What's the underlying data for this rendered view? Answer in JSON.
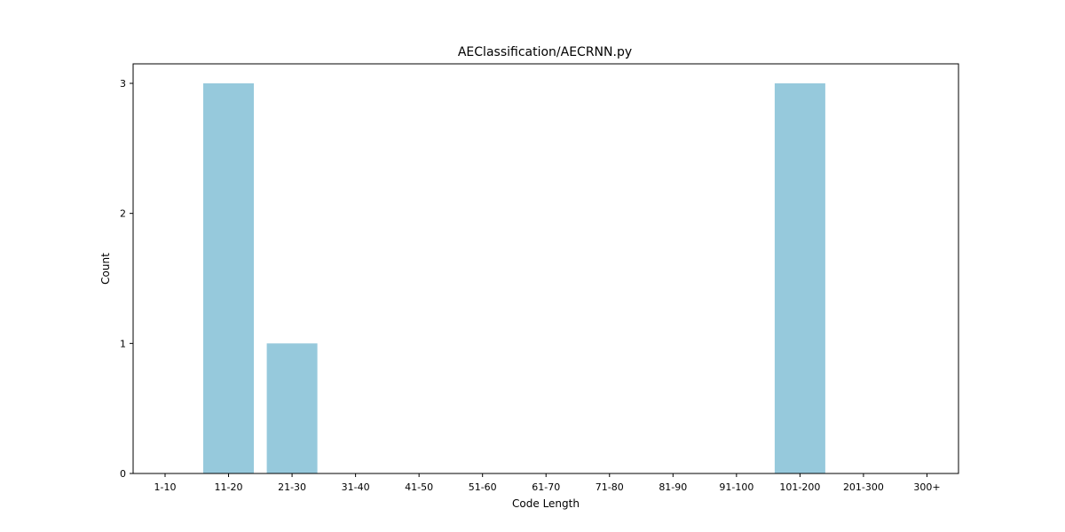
{
  "chart_data": {
    "type": "bar",
    "title": "AEClassification/AECRNN.py",
    "xlabel": "Code Length",
    "ylabel": "Count",
    "categories": [
      "1-10",
      "11-20",
      "21-30",
      "31-40",
      "41-50",
      "51-60",
      "61-70",
      "71-80",
      "81-90",
      "91-100",
      "101-200",
      "201-300",
      "300+"
    ],
    "values": [
      0,
      3,
      1,
      0,
      0,
      0,
      0,
      0,
      0,
      0,
      3,
      0,
      0
    ],
    "ylim": [
      0,
      3.15
    ],
    "yticks": [
      "0",
      "1",
      "2",
      "3"
    ],
    "bar_color": "#96c9dc",
    "grid": false,
    "legend": "none"
  }
}
